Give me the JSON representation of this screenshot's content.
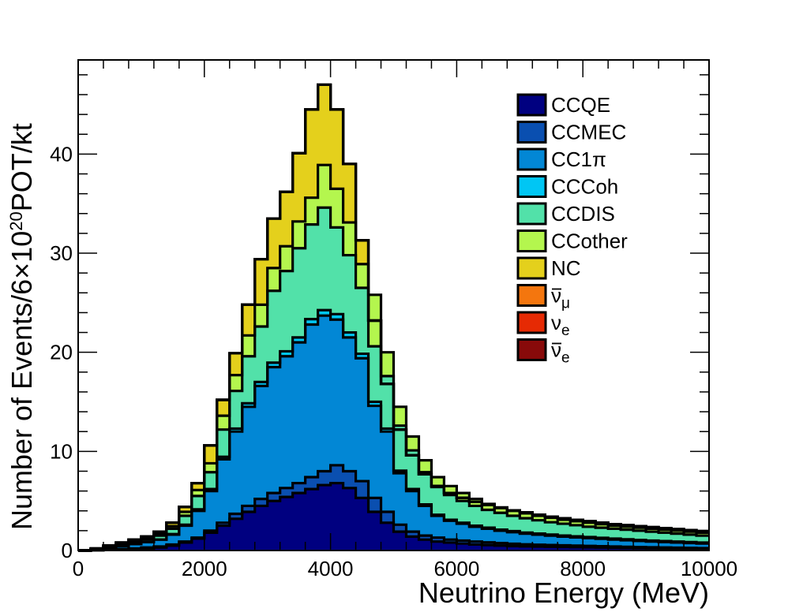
{
  "chart_data": {
    "type": "area",
    "xlabel": "Neutrino Energy (MeV)",
    "ylabel": "Number of Events/6×10^20POT/kt",
    "ylabel_parts": {
      "pre": "Number of Events/6×10",
      "sup": "20",
      "post": "POT/kt"
    },
    "xlim": [
      0,
      10000
    ],
    "ylim": [
      0,
      49.5
    ],
    "x_ticks": [
      "0",
      "2000",
      "4000",
      "6000",
      "8000",
      "10000"
    ],
    "x_tick_values": [
      0,
      2000,
      4000,
      6000,
      8000,
      10000
    ],
    "y_ticks": [
      "0",
      "10",
      "20",
      "30",
      "40"
    ],
    "y_tick_values": [
      0,
      10,
      20,
      30,
      40
    ],
    "bin_width": 200,
    "stack_order": "cumulative",
    "x": [
      0,
      200,
      400,
      600,
      800,
      1000,
      1200,
      1400,
      1600,
      1800,
      2000,
      2200,
      2400,
      2600,
      2800,
      3000,
      3200,
      3400,
      3600,
      3800,
      4000,
      4200,
      4400,
      4600,
      4800,
      5000,
      5200,
      5400,
      5600,
      5800,
      6000,
      6200,
      6400,
      6600,
      6800,
      7000,
      7200,
      7400,
      7600,
      7800,
      8000,
      8200,
      8400,
      8600,
      8800,
      9000,
      9200,
      9400,
      9600,
      9800
    ],
    "legend_position": "top-right",
    "series": [
      {
        "name": "CCQE",
        "label": "CCQE",
        "color": "#000080",
        "values": [
          0,
          0.02,
          0.05,
          0.1,
          0.15,
          0.2,
          0.3,
          0.5,
          0.8,
          1.2,
          1.8,
          2.5,
          3.2,
          3.9,
          4.5,
          5.0,
          5.4,
          5.8,
          6.2,
          6.6,
          6.8,
          6.3,
          5.3,
          3.9,
          2.8,
          1.9,
          1.4,
          1.1,
          0.9,
          0.8,
          0.7,
          0.6,
          0.55,
          0.5,
          0.45,
          0.42,
          0.4,
          0.38,
          0.36,
          0.34,
          0.32,
          0.3,
          0.28,
          0.26,
          0.24,
          0.22,
          0.2,
          0.18,
          0.16,
          0.15
        ]
      },
      {
        "name": "CCMEC",
        "label": "CCMEC",
        "color": "#0a4fb0",
        "values": [
          0,
          0.03,
          0.08,
          0.15,
          0.2,
          0.3,
          0.4,
          0.6,
          0.9,
          1.3,
          2.0,
          2.8,
          3.7,
          4.5,
          5.2,
          5.8,
          6.3,
          6.8,
          7.4,
          8.0,
          8.6,
          8.0,
          7.0,
          5.3,
          3.9,
          2.6,
          1.9,
          1.5,
          1.3,
          1.1,
          1.0,
          0.9,
          0.82,
          0.75,
          0.68,
          0.62,
          0.58,
          0.55,
          0.52,
          0.49,
          0.46,
          0.43,
          0.4,
          0.37,
          0.34,
          0.32,
          0.3,
          0.28,
          0.26,
          0.24
        ]
      },
      {
        "name": "CC1π",
        "label": "CC1π",
        "color": "#0287d5",
        "values": [
          0,
          0.1,
          0.25,
          0.45,
          0.65,
          0.85,
          1.1,
          1.6,
          2.5,
          4.0,
          6.0,
          9.2,
          12.0,
          14.5,
          16.6,
          18.5,
          19.6,
          21.0,
          22.8,
          23.7,
          23.3,
          21.5,
          19.4,
          14.6,
          12.0,
          7.8,
          6.0,
          4.5,
          3.5,
          3.0,
          2.7,
          2.4,
          2.2,
          2.0,
          1.85,
          1.7,
          1.6,
          1.5,
          1.4,
          1.32,
          1.25,
          1.18,
          1.1,
          1.03,
          0.96,
          0.9,
          0.85,
          0.8,
          0.75,
          0.7
        ]
      },
      {
        "name": "CCCoh",
        "label": "CCCoh",
        "color": "#00c6f4",
        "values": [
          0,
          0.1,
          0.25,
          0.45,
          0.65,
          0.85,
          1.1,
          1.65,
          2.6,
          4.15,
          6.2,
          9.45,
          12.3,
          14.85,
          17.0,
          18.95,
          20.1,
          21.5,
          23.35,
          24.25,
          23.85,
          22.0,
          19.85,
          15.0,
          12.3,
          8.05,
          6.2,
          4.65,
          3.6,
          3.1,
          2.8,
          2.5,
          2.3,
          2.1,
          1.95,
          1.8,
          1.7,
          1.6,
          1.5,
          1.42,
          1.35,
          1.28,
          1.2,
          1.13,
          1.06,
          1.0,
          0.95,
          0.9,
          0.85,
          0.8
        ]
      },
      {
        "name": "CCDIS",
        "label": "CCDIS",
        "color": "#52e1a9",
        "values": [
          0,
          0.15,
          0.35,
          0.6,
          0.85,
          1.1,
          1.5,
          2.2,
          3.5,
          5.5,
          7.9,
          12.2,
          16.1,
          19.6,
          22.6,
          26.2,
          28.2,
          30.5,
          32.9,
          34.6,
          32.6,
          29.8,
          26.5,
          20.6,
          17.6,
          12.6,
          10.1,
          7.9,
          6.4,
          5.6,
          5.0,
          4.5,
          4.1,
          3.8,
          3.5,
          3.25,
          3.05,
          2.85,
          2.7,
          2.55,
          2.4,
          2.3,
          2.2,
          2.1,
          2.0,
          1.9,
          1.8,
          1.7,
          1.6,
          1.5
        ]
      },
      {
        "name": "CCother",
        "label": "CCother",
        "color": "#b4f64e",
        "values": [
          0,
          0.18,
          0.42,
          0.72,
          1.0,
          1.25,
          1.7,
          2.45,
          3.9,
          6.1,
          8.8,
          13.6,
          17.7,
          21.7,
          24.8,
          28.5,
          30.7,
          33.2,
          35.6,
          38.9,
          36.5,
          33.1,
          28.9,
          25.8,
          20.0,
          14.5,
          11.5,
          9.1,
          7.4,
          6.5,
          5.8,
          5.2,
          4.7,
          4.35,
          4.0,
          3.75,
          3.5,
          3.3,
          3.1,
          2.95,
          2.8,
          2.65,
          2.5,
          2.4,
          2.3,
          2.2,
          2.1,
          2.0,
          1.9,
          1.8
        ]
      },
      {
        "name": "NC",
        "label": "NC",
        "color": "#e4d01c",
        "values": [
          0,
          0.2,
          0.5,
          0.8,
          1.1,
          1.4,
          1.9,
          2.8,
          4.4,
          6.8,
          10.6,
          15.2,
          19.9,
          24.8,
          29.4,
          33.5,
          36.2,
          40.1,
          44.5,
          47.0,
          44.5,
          39.0,
          31.3,
          23.2,
          16.8,
          12.2,
          9.6,
          7.7,
          6.5,
          5.8,
          5.3,
          4.9,
          4.6,
          4.3,
          4.05,
          3.85,
          3.6,
          3.4,
          3.25,
          3.1,
          2.95,
          2.8,
          2.65,
          2.55,
          2.45,
          2.35,
          2.25,
          2.15,
          2.05,
          1.95
        ]
      },
      {
        "name": "ν̄μ",
        "label_main": "ν",
        "label_sub": "μ",
        "bar": true,
        "color": "#f4760e",
        "values": [
          0,
          0.2,
          0.5,
          0.8,
          1.1,
          1.4,
          1.9,
          2.8,
          4.4,
          6.8,
          10.6,
          15.2,
          19.9,
          24.8,
          29.4,
          33.5,
          36.2,
          40.1,
          44.5,
          47.0,
          44.5,
          39.0,
          31.3,
          23.2,
          16.8,
          12.2,
          9.6,
          7.7,
          6.5,
          5.8,
          5.3,
          4.9,
          4.6,
          4.3,
          4.05,
          3.85,
          3.6,
          3.4,
          3.25,
          3.1,
          2.95,
          2.8,
          2.65,
          2.55,
          2.45,
          2.35,
          2.25,
          2.15,
          2.05,
          1.95
        ]
      },
      {
        "name": "νe",
        "label_main": "ν",
        "label_sub": "e",
        "bar": false,
        "color": "#e62a04",
        "values": [
          0,
          0.2,
          0.5,
          0.8,
          1.1,
          1.4,
          1.9,
          2.8,
          4.4,
          6.8,
          10.6,
          15.2,
          19.9,
          24.8,
          29.4,
          33.5,
          36.2,
          40.1,
          44.5,
          47.0,
          44.5,
          39.0,
          31.3,
          23.2,
          16.8,
          12.2,
          9.6,
          7.7,
          6.5,
          5.8,
          5.3,
          4.9,
          4.6,
          4.3,
          4.05,
          3.85,
          3.6,
          3.4,
          3.25,
          3.1,
          2.95,
          2.8,
          2.65,
          2.55,
          2.45,
          2.35,
          2.25,
          2.15,
          2.05,
          1.95
        ]
      },
      {
        "name": "ν̄e",
        "label_main": "ν",
        "label_sub": "e",
        "bar": true,
        "color": "#880a0a",
        "values": [
          0,
          0.2,
          0.5,
          0.8,
          1.1,
          1.4,
          1.9,
          2.8,
          4.4,
          6.8,
          10.6,
          15.2,
          19.9,
          24.8,
          29.4,
          33.5,
          36.2,
          40.1,
          44.5,
          47.0,
          44.5,
          39.0,
          31.3,
          23.2,
          16.8,
          12.2,
          9.6,
          7.7,
          6.5,
          5.8,
          5.3,
          4.9,
          4.6,
          4.3,
          4.05,
          3.85,
          3.6,
          3.4,
          3.25,
          3.1,
          2.95,
          2.8,
          2.65,
          2.55,
          2.45,
          2.35,
          2.25,
          2.15,
          2.05,
          1.95
        ]
      }
    ]
  }
}
